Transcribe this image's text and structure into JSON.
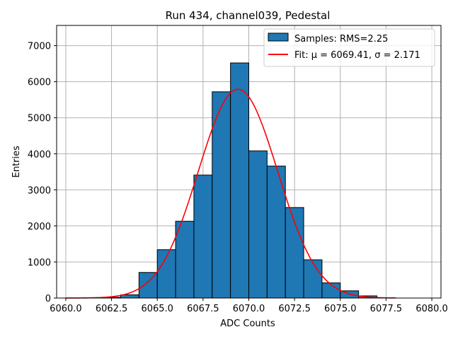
{
  "chart_data": {
    "type": "bar",
    "title": "Run 434, channel039, Pedestal",
    "xlabel": "ADC Counts",
    "ylabel": "Entries",
    "xlim": [
      6059.5,
      6080.5
    ],
    "ylim": [
      0,
      7560
    ],
    "grid": true,
    "legend_placement": "top-right",
    "x_ticks": [
      6060.0,
      6062.5,
      6065.0,
      6067.5,
      6070.0,
      6072.5,
      6075.0,
      6077.5,
      6080.0
    ],
    "x_tick_labels": [
      "6060.0",
      "6062.5",
      "6065.0",
      "6067.5",
      "6070.0",
      "6072.5",
      "6075.0",
      "6077.5",
      "6080.0"
    ],
    "y_ticks": [
      0,
      1000,
      2000,
      3000,
      4000,
      5000,
      6000,
      7000
    ],
    "y_tick_labels": [
      "0",
      "1000",
      "2000",
      "3000",
      "4000",
      "5000",
      "6000",
      "7000"
    ],
    "histogram": {
      "name": "Samples: RMS=2.25",
      "bin_width": 1,
      "bin_edges_start": [
        6062,
        6063,
        6064,
        6065,
        6066,
        6067,
        6068,
        6069,
        6070,
        6071,
        6072,
        6073,
        6074,
        6075,
        6076,
        6077
      ],
      "values": [
        20,
        90,
        710,
        1340,
        2130,
        3410,
        5720,
        6520,
        4080,
        3660,
        2510,
        1060,
        420,
        200,
        60,
        10
      ],
      "color": "#1f77b4",
      "edgecolor": "#000000"
    },
    "fit": {
      "name": "Fit: μ = 6069.41, σ = 2.171",
      "mu": 6069.41,
      "sigma": 2.171,
      "amplitude": 5790,
      "x_range": [
        6060,
        6078
      ],
      "color": "#ff0000"
    }
  }
}
